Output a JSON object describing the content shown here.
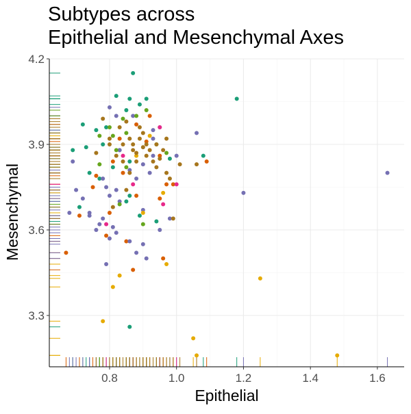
{
  "chart_data": {
    "type": "scatter",
    "title": [
      "Subtypes across",
      "Epithelial and Mesenchymal Axes"
    ],
    "xlabel": "Epithelial",
    "ylabel": "Mesenchymal",
    "xlim": [
      0.62,
      1.68
    ],
    "ylim": [
      3.12,
      4.2
    ],
    "x_ticks": [
      0.8,
      1.0,
      1.2,
      1.4,
      1.6
    ],
    "x_tick_labels": [
      "0.8",
      "1.0",
      "1.2",
      "1.4",
      "1.6"
    ],
    "y_ticks": [
      3.3,
      3.6,
      3.9,
      4.2
    ],
    "y_tick_labels": [
      "3.3",
      "3.6",
      "3.9",
      "4.2"
    ],
    "grid": true,
    "legend": false,
    "rug": true,
    "colors": {
      "teal": "#1b9e77",
      "orange": "#d95f02",
      "purple": "#7570b3",
      "pink": "#e7298a",
      "green": "#66a61e",
      "gold": "#e6ab02",
      "brown": "#a6761d"
    },
    "series": [
      {
        "color_key": "teal",
        "points": [
          [
            0.87,
            4.15
          ],
          [
            0.82,
            4.07
          ],
          [
            0.86,
            4.06
          ],
          [
            0.89,
            4.04
          ],
          [
            0.91,
            4.06
          ],
          [
            0.72,
            3.97
          ],
          [
            0.76,
            3.95
          ],
          [
            0.85,
            4.02
          ],
          [
            0.78,
            3.9
          ],
          [
            0.69,
            3.88
          ],
          [
            0.73,
            3.89
          ],
          [
            0.79,
            3.96
          ],
          [
            0.81,
            3.82
          ],
          [
            0.74,
            3.8
          ],
          [
            0.77,
            3.78
          ],
          [
            0.86,
            3.84
          ],
          [
            0.86,
            3.72
          ],
          [
            0.89,
            3.65
          ],
          [
            0.94,
            3.63
          ],
          [
            0.83,
            3.88
          ],
          [
            0.98,
            3.85
          ],
          [
            1.08,
            3.86
          ],
          [
            1.18,
            4.06
          ],
          [
            0.71,
            3.68
          ],
          [
            0.86,
            3.26
          ],
          [
            0.85,
            3.7
          ]
        ]
      },
      {
        "color_key": "orange",
        "points": [
          [
            0.67,
            3.52
          ],
          [
            0.87,
            3.46
          ],
          [
            0.96,
            3.5
          ],
          [
            0.91,
            3.91
          ],
          [
            0.95,
            3.86
          ],
          [
            0.76,
            3.79
          ],
          [
            0.81,
            3.84
          ],
          [
            0.83,
            3.92
          ],
          [
            0.84,
            3.8
          ],
          [
            0.88,
            3.72
          ],
          [
            0.97,
            3.76
          ],
          [
            0.99,
            3.76
          ],
          [
            1.09,
            3.84
          ],
          [
            0.75,
            3.75
          ],
          [
            0.8,
            3.66
          ],
          [
            0.85,
            3.56
          ],
          [
            0.95,
            3.71
          ],
          [
            0.88,
            3.97
          ],
          [
            0.92,
            4.0
          ],
          [
            0.71,
            3.65
          ],
          [
            0.79,
            3.58
          ]
        ]
      },
      {
        "color_key": "purple",
        "points": [
          [
            0.69,
            3.84
          ],
          [
            0.7,
            3.74
          ],
          [
            0.72,
            3.71
          ],
          [
            0.74,
            3.66
          ],
          [
            0.78,
            3.78
          ],
          [
            0.79,
            3.75
          ],
          [
            0.8,
            3.72
          ],
          [
            0.82,
            3.74
          ],
          [
            0.83,
            3.7
          ],
          [
            0.83,
            3.88
          ],
          [
            0.86,
            3.81
          ],
          [
            0.88,
            3.78
          ],
          [
            0.9,
            3.83
          ],
          [
            0.92,
            3.8
          ],
          [
            0.93,
            3.86
          ],
          [
            0.76,
            3.6
          ],
          [
            0.78,
            3.64
          ],
          [
            0.8,
            3.57
          ],
          [
            0.82,
            3.59
          ],
          [
            0.86,
            3.56
          ],
          [
            0.88,
            3.52
          ],
          [
            0.9,
            3.67
          ],
          [
            0.93,
            3.92
          ],
          [
            0.95,
            3.96
          ],
          [
            1.06,
            3.94
          ],
          [
            1.0,
            3.86
          ],
          [
            1.2,
            3.73
          ],
          [
            1.63,
            3.8
          ],
          [
            0.8,
            4.03
          ],
          [
            0.82,
            4.0
          ],
          [
            0.87,
            4.0
          ],
          [
            0.95,
            3.6
          ],
          [
            0.98,
            3.64
          ],
          [
            0.68,
            3.66
          ],
          [
            0.74,
            3.65
          ],
          [
            0.77,
            3.62
          ],
          [
            0.81,
            3.61
          ],
          [
            0.9,
            3.55
          ],
          [
            0.79,
            3.48
          ],
          [
            0.91,
            3.5
          ],
          [
            0.93,
            3.95
          ]
        ]
      },
      {
        "color_key": "pink",
        "points": [
          [
            0.79,
            3.62
          ],
          [
            1.0,
            3.76
          ],
          [
            0.87,
            3.76
          ],
          [
            0.96,
            3.69
          ],
          [
            0.84,
            3.86
          ],
          [
            0.95,
            3.96
          ]
        ]
      },
      {
        "color_key": "green",
        "points": [
          [
            0.83,
            3.69
          ],
          [
            0.9,
            3.62
          ],
          [
            0.94,
            3.9
          ],
          [
            0.97,
            3.87
          ],
          [
            0.82,
            3.88
          ],
          [
            0.8,
            3.96
          ],
          [
            0.84,
            3.99
          ],
          [
            0.77,
            3.93
          ],
          [
            0.85,
            3.94
          ],
          [
            0.88,
            4.0
          ],
          [
            0.91,
            4.02
          ],
          [
            0.81,
            3.93
          ],
          [
            0.85,
            3.82
          ],
          [
            0.77,
            3.83
          ]
        ]
      },
      {
        "color_key": "gold",
        "points": [
          [
            0.78,
            3.28
          ],
          [
            0.81,
            3.4
          ],
          [
            0.83,
            3.44
          ],
          [
            0.97,
            3.48
          ],
          [
            1.05,
            3.22
          ],
          [
            1.06,
            3.16
          ],
          [
            1.25,
            3.43
          ],
          [
            1.48,
            3.16
          ],
          [
            0.9,
            3.66
          ],
          [
            0.96,
            3.73
          ],
          [
            0.88,
            3.86
          ],
          [
            0.92,
            3.93
          ]
        ]
      },
      {
        "color_key": "brown",
        "points": [
          [
            0.76,
            3.87
          ],
          [
            0.8,
            3.9
          ],
          [
            0.82,
            3.86
          ],
          [
            0.84,
            3.84
          ],
          [
            0.86,
            3.92
          ],
          [
            0.87,
            3.9
          ],
          [
            0.88,
            3.87
          ],
          [
            0.9,
            3.89
          ],
          [
            0.91,
            3.9
          ],
          [
            0.92,
            3.88
          ],
          [
            0.93,
            3.84
          ],
          [
            0.94,
            3.82
          ],
          [
            0.95,
            3.85
          ],
          [
            0.96,
            3.88
          ],
          [
            0.97,
            3.8
          ],
          [
            0.98,
            3.78
          ],
          [
            1.01,
            3.83
          ],
          [
            1.06,
            3.83
          ],
          [
            0.83,
            3.96
          ],
          [
            0.85,
            3.98
          ],
          [
            0.89,
            3.96
          ],
          [
            0.9,
            3.94
          ],
          [
            0.78,
            3.99
          ],
          [
            0.8,
            3.92
          ],
          [
            0.84,
            3.9
          ],
          [
            0.86,
            3.8
          ],
          [
            0.88,
            3.84
          ],
          [
            0.91,
            3.86
          ],
          [
            0.94,
            3.9
          ],
          [
            0.97,
            3.92
          ],
          [
            0.99,
            3.64
          ],
          [
            0.81,
            3.68
          ],
          [
            0.85,
            3.74
          ],
          [
            0.87,
            3.88
          ],
          [
            0.89,
            3.92
          ]
        ]
      }
    ]
  }
}
